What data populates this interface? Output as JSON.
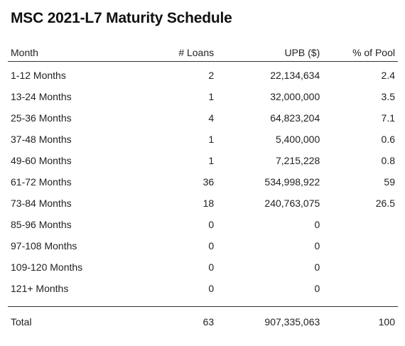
{
  "title": "MSC 2021-L7 Maturity Schedule",
  "table": {
    "columns": {
      "month": "Month",
      "loans": "# Loans",
      "upb": "UPB ($)",
      "pct": "% of Pool"
    },
    "rows": [
      {
        "month": "1-12 Months",
        "loans": "2",
        "upb": "22,134,634",
        "pct": "2.4"
      },
      {
        "month": "13-24 Months",
        "loans": "1",
        "upb": "32,000,000",
        "pct": "3.5"
      },
      {
        "month": "25-36 Months",
        "loans": "4",
        "upb": "64,823,204",
        "pct": "7.1"
      },
      {
        "month": "37-48 Months",
        "loans": "1",
        "upb": "5,400,000",
        "pct": "0.6"
      },
      {
        "month": "49-60 Months",
        "loans": "1",
        "upb": "7,215,228",
        "pct": "0.8"
      },
      {
        "month": "61-72 Months",
        "loans": "36",
        "upb": "534,998,922",
        "pct": "59"
      },
      {
        "month": "73-84 Months",
        "loans": "18",
        "upb": "240,763,075",
        "pct": "26.5"
      },
      {
        "month": "85-96 Months",
        "loans": "0",
        "upb": "0",
        "pct": ""
      },
      {
        "month": "97-108 Months",
        "loans": "0",
        "upb": "0",
        "pct": ""
      },
      {
        "month": "109-120 Months",
        "loans": "0",
        "upb": "0",
        "pct": ""
      },
      {
        "month": "121+ Months",
        "loans": "0",
        "upb": "0",
        "pct": ""
      }
    ],
    "total": {
      "month": "Total",
      "loans": "63",
      "upb": "907,335,063",
      "pct": "100"
    }
  }
}
